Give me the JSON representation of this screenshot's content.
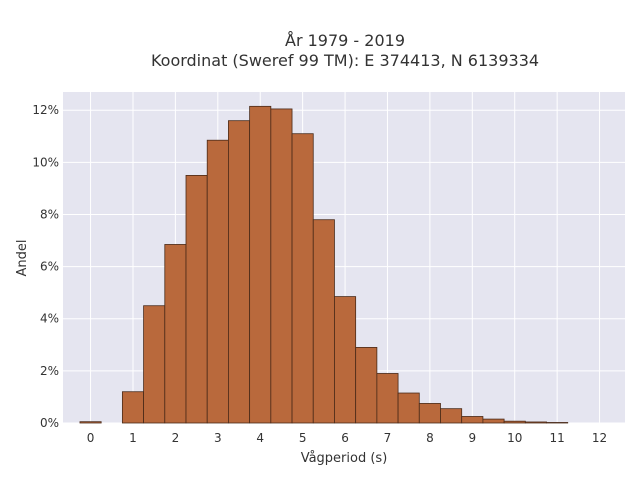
{
  "chart_data": {
    "type": "bar",
    "title_line1": "År 1979 - 2019",
    "title_line2": "Koordinat (Sweref 99 TM): E 374413, N 6139334",
    "xlabel": "Vågperiod (s)",
    "ylabel": "Andel",
    "xlim": [
      -0.65,
      12.6
    ],
    "ylim": [
      0,
      12.7
    ],
    "x_ticks": [
      "0",
      "1",
      "2",
      "3",
      "4",
      "5",
      "6",
      "7",
      "8",
      "9",
      "10",
      "11",
      "12"
    ],
    "y_ticks": [
      "0%",
      "2%",
      "4%",
      "6%",
      "8%",
      "10%",
      "12%"
    ],
    "bin_width": 0.5,
    "bins": [
      {
        "x0": -0.25,
        "x1": 0.25,
        "value": 0.05
      },
      {
        "x0": 0.75,
        "x1": 1.25,
        "value": 1.2
      },
      {
        "x0": 1.25,
        "x1": 1.75,
        "value": 4.5
      },
      {
        "x0": 1.75,
        "x1": 2.25,
        "value": 6.85
      },
      {
        "x0": 2.25,
        "x1": 2.75,
        "value": 9.5
      },
      {
        "x0": 2.75,
        "x1": 3.25,
        "value": 10.85
      },
      {
        "x0": 3.25,
        "x1": 3.75,
        "value": 11.6
      },
      {
        "x0": 3.75,
        "x1": 4.25,
        "value": 12.15
      },
      {
        "x0": 4.25,
        "x1": 4.75,
        "value": 12.05
      },
      {
        "x0": 4.75,
        "x1": 5.25,
        "value": 11.1
      },
      {
        "x0": 5.25,
        "x1": 5.75,
        "value": 7.8
      },
      {
        "x0": 5.75,
        "x1": 6.25,
        "value": 4.85
      },
      {
        "x0": 6.25,
        "x1": 6.75,
        "value": 2.9
      },
      {
        "x0": 6.75,
        "x1": 7.25,
        "value": 1.9
      },
      {
        "x0": 7.25,
        "x1": 7.75,
        "value": 1.15
      },
      {
        "x0": 7.75,
        "x1": 8.25,
        "value": 0.75
      },
      {
        "x0": 8.25,
        "x1": 8.75,
        "value": 0.55
      },
      {
        "x0": 8.75,
        "x1": 9.25,
        "value": 0.25
      },
      {
        "x0": 9.25,
        "x1": 9.75,
        "value": 0.15
      },
      {
        "x0": 9.75,
        "x1": 10.25,
        "value": 0.07
      },
      {
        "x0": 10.25,
        "x1": 10.75,
        "value": 0.04
      },
      {
        "x0": 10.75,
        "x1": 11.25,
        "value": 0.02
      }
    ],
    "grid": true,
    "colors": {
      "bar_fill": "#b9693c",
      "bar_edge": "#4a2a18",
      "plot_background": "#e5e5f0",
      "grid": "#ffffff"
    }
  }
}
